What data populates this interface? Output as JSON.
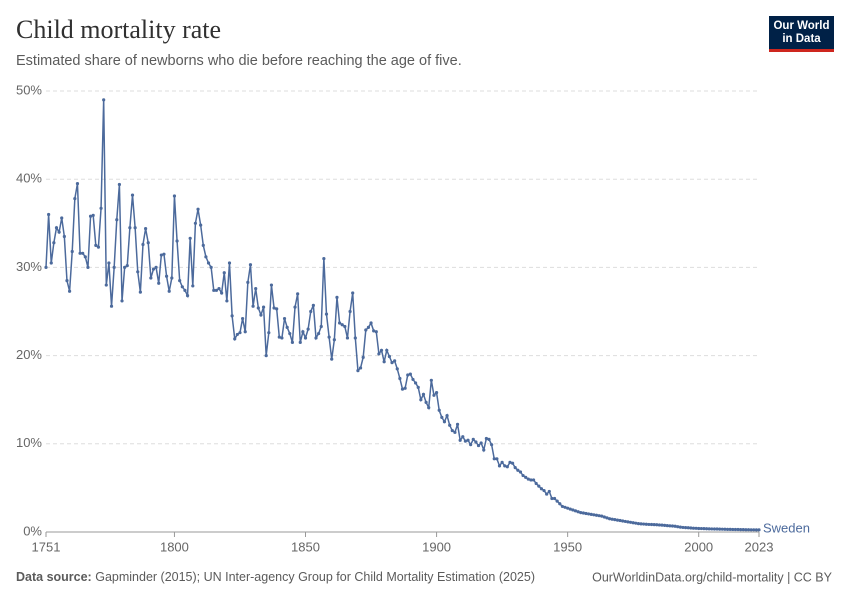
{
  "chart_data": {
    "type": "line",
    "title": "Child mortality rate",
    "subtitle": "Estimated share of newborns who die before reaching the age of five.",
    "logo": [
      "Our World",
      "in Data"
    ],
    "source_label": "Data source:",
    "source_text": "Gapminder (2015); UN Inter-agency Group for Child Mortality Estimation (2025)",
    "url": "OurWorldinData.org/child-mortality | CC BY",
    "xlim": [
      1751,
      2023
    ],
    "xticks": [
      1751,
      1800,
      1850,
      1900,
      1950,
      2000,
      2023
    ],
    "ylim": [
      0,
      50
    ],
    "yticks": [
      {
        "value": 0,
        "label": "0%"
      },
      {
        "value": 10,
        "label": "10%"
      },
      {
        "value": 20,
        "label": "20%"
      },
      {
        "value": 30,
        "label": "30%"
      },
      {
        "value": 40,
        "label": "40%"
      },
      {
        "value": 50,
        "label": "50%"
      }
    ],
    "grid": true,
    "x": [
      1751,
      1752,
      1753,
      1754,
      1755,
      1756,
      1757,
      1758,
      1759,
      1760,
      1761,
      1762,
      1763,
      1764,
      1765,
      1766,
      1767,
      1768,
      1769,
      1770,
      1771,
      1772,
      1773,
      1774,
      1775,
      1776,
      1777,
      1778,
      1779,
      1780,
      1781,
      1782,
      1783,
      1784,
      1785,
      1786,
      1787,
      1788,
      1789,
      1790,
      1791,
      1792,
      1793,
      1794,
      1795,
      1796,
      1797,
      1798,
      1799,
      1800,
      1801,
      1802,
      1803,
      1804,
      1805,
      1806,
      1807,
      1808,
      1809,
      1810,
      1811,
      1812,
      1813,
      1814,
      1815,
      1816,
      1817,
      1818,
      1819,
      1820,
      1821,
      1822,
      1823,
      1824,
      1825,
      1826,
      1827,
      1828,
      1829,
      1830,
      1831,
      1832,
      1833,
      1834,
      1835,
      1836,
      1837,
      1838,
      1839,
      1840,
      1841,
      1842,
      1843,
      1844,
      1845,
      1846,
      1847,
      1848,
      1849,
      1850,
      1851,
      1852,
      1853,
      1854,
      1855,
      1856,
      1857,
      1858,
      1859,
      1860,
      1861,
      1862,
      1863,
      1864,
      1865,
      1866,
      1867,
      1868,
      1869,
      1870,
      1871,
      1872,
      1873,
      1874,
      1875,
      1876,
      1877,
      1878,
      1879,
      1880,
      1881,
      1882,
      1883,
      1884,
      1885,
      1886,
      1887,
      1888,
      1889,
      1890,
      1891,
      1892,
      1893,
      1894,
      1895,
      1896,
      1897,
      1898,
      1899,
      1900,
      1901,
      1902,
      1903,
      1904,
      1905,
      1906,
      1907,
      1908,
      1909,
      1910,
      1911,
      1912,
      1913,
      1914,
      1915,
      1916,
      1917,
      1918,
      1919,
      1920,
      1921,
      1922,
      1923,
      1924,
      1925,
      1926,
      1927,
      1928,
      1929,
      1930,
      1931,
      1932,
      1933,
      1934,
      1935,
      1936,
      1937,
      1938,
      1939,
      1940,
      1941,
      1942,
      1943,
      1944,
      1945,
      1946,
      1947,
      1948,
      1949,
      1950,
      1951,
      1952,
      1953,
      1954,
      1955,
      1956,
      1957,
      1958,
      1959,
      1960,
      1961,
      1962,
      1963,
      1964,
      1965,
      1966,
      1967,
      1968,
      1969,
      1970,
      1971,
      1972,
      1973,
      1974,
      1975,
      1976,
      1977,
      1978,
      1979,
      1980,
      1981,
      1982,
      1983,
      1984,
      1985,
      1986,
      1987,
      1988,
      1989,
      1990,
      1991,
      1992,
      1993,
      1994,
      1995,
      1996,
      1997,
      1998,
      1999,
      2000,
      2001,
      2002,
      2003,
      2004,
      2005,
      2006,
      2007,
      2008,
      2009,
      2010,
      2011,
      2012,
      2013,
      2014,
      2015,
      2016,
      2017,
      2018,
      2019,
      2020,
      2021,
      2022,
      2023
    ],
    "series": [
      {
        "name": "Sweden",
        "color": "#4c6a9c",
        "values": [
          30.0,
          36.0,
          30.5,
          32.8,
          34.5,
          34.0,
          35.6,
          33.5,
          28.5,
          27.3,
          31.8,
          37.8,
          39.5,
          31.6,
          31.6,
          31.2,
          30.0,
          35.8,
          35.9,
          32.5,
          32.3,
          36.7,
          49.0,
          28.0,
          30.5,
          25.6,
          30.0,
          35.4,
          39.4,
          26.2,
          30.0,
          30.2,
          34.5,
          38.2,
          34.5,
          29.5,
          27.2,
          32.6,
          34.4,
          32.8,
          28.8,
          29.8,
          30.0,
          28.2,
          31.4,
          31.5,
          29.0,
          27.3,
          28.8,
          38.1,
          33.0,
          28.5,
          27.8,
          27.4,
          26.8,
          33.3,
          27.9,
          35.0,
          36.6,
          34.8,
          32.5,
          31.2,
          30.5,
          30.0,
          27.4,
          27.4,
          27.6,
          27.1,
          29.4,
          26.2,
          30.5,
          24.5,
          21.9,
          22.4,
          22.6,
          24.2,
          22.7,
          28.3,
          30.3,
          25.6,
          27.6,
          25.4,
          24.6,
          25.5,
          20.0,
          22.6,
          28.0,
          25.4,
          25.3,
          22.1,
          22.0,
          24.2,
          23.2,
          22.5,
          21.5,
          25.5,
          27.0,
          21.5,
          22.7,
          22.0,
          23.0,
          25.0,
          25.7,
          22.0,
          22.5,
          23.3,
          31.0,
          24.7,
          22.1,
          19.6,
          21.8,
          26.6,
          23.7,
          23.5,
          23.3,
          22.0,
          25.0,
          27.1,
          22.0,
          18.3,
          18.6,
          19.8,
          22.9,
          23.2,
          23.7,
          22.8,
          22.7,
          20.2,
          20.6,
          19.3,
          20.6,
          19.9,
          19.2,
          19.4,
          18.5,
          17.4,
          16.2,
          16.3,
          17.8,
          17.9,
          17.3,
          16.9,
          16.4,
          15.0,
          15.6,
          14.7,
          14.1,
          17.2,
          15.5,
          15.8,
          13.8,
          13.0,
          12.5,
          13.2,
          12.1,
          11.5,
          11.3,
          12.2,
          10.4,
          10.8,
          10.3,
          10.4,
          9.9,
          10.5,
          10.2,
          9.8,
          10.1,
          9.3,
          10.6,
          10.5,
          9.9,
          8.3,
          8.3,
          7.5,
          7.9,
          7.5,
          7.4,
          7.9,
          7.8,
          7.3,
          7.0,
          6.8,
          6.4,
          6.2,
          6.0,
          5.9,
          5.9,
          5.5,
          5.2,
          4.9,
          4.7,
          4.3,
          4.6,
          3.8,
          3.8,
          3.5,
          3.2,
          2.9,
          2.8,
          2.7,
          2.6,
          2.5,
          2.4,
          2.3,
          2.2,
          2.15,
          2.1,
          2.05,
          2.0,
          1.95,
          1.9,
          1.85,
          1.8,
          1.7,
          1.6,
          1.5,
          1.45,
          1.4,
          1.35,
          1.3,
          1.25,
          1.2,
          1.15,
          1.1,
          1.05,
          1.0,
          0.95,
          0.92,
          0.9,
          0.88,
          0.86,
          0.85,
          0.84,
          0.82,
          0.8,
          0.78,
          0.75,
          0.72,
          0.7,
          0.68,
          0.65,
          0.6,
          0.55,
          0.52,
          0.5,
          0.48,
          0.45,
          0.43,
          0.42,
          0.4,
          0.39,
          0.38,
          0.37,
          0.36,
          0.35,
          0.34,
          0.34,
          0.33,
          0.32,
          0.31,
          0.3,
          0.3,
          0.29,
          0.28,
          0.28,
          0.27,
          0.27,
          0.26,
          0.26,
          0.25,
          0.25,
          0.24,
          0.24
        ]
      }
    ]
  }
}
